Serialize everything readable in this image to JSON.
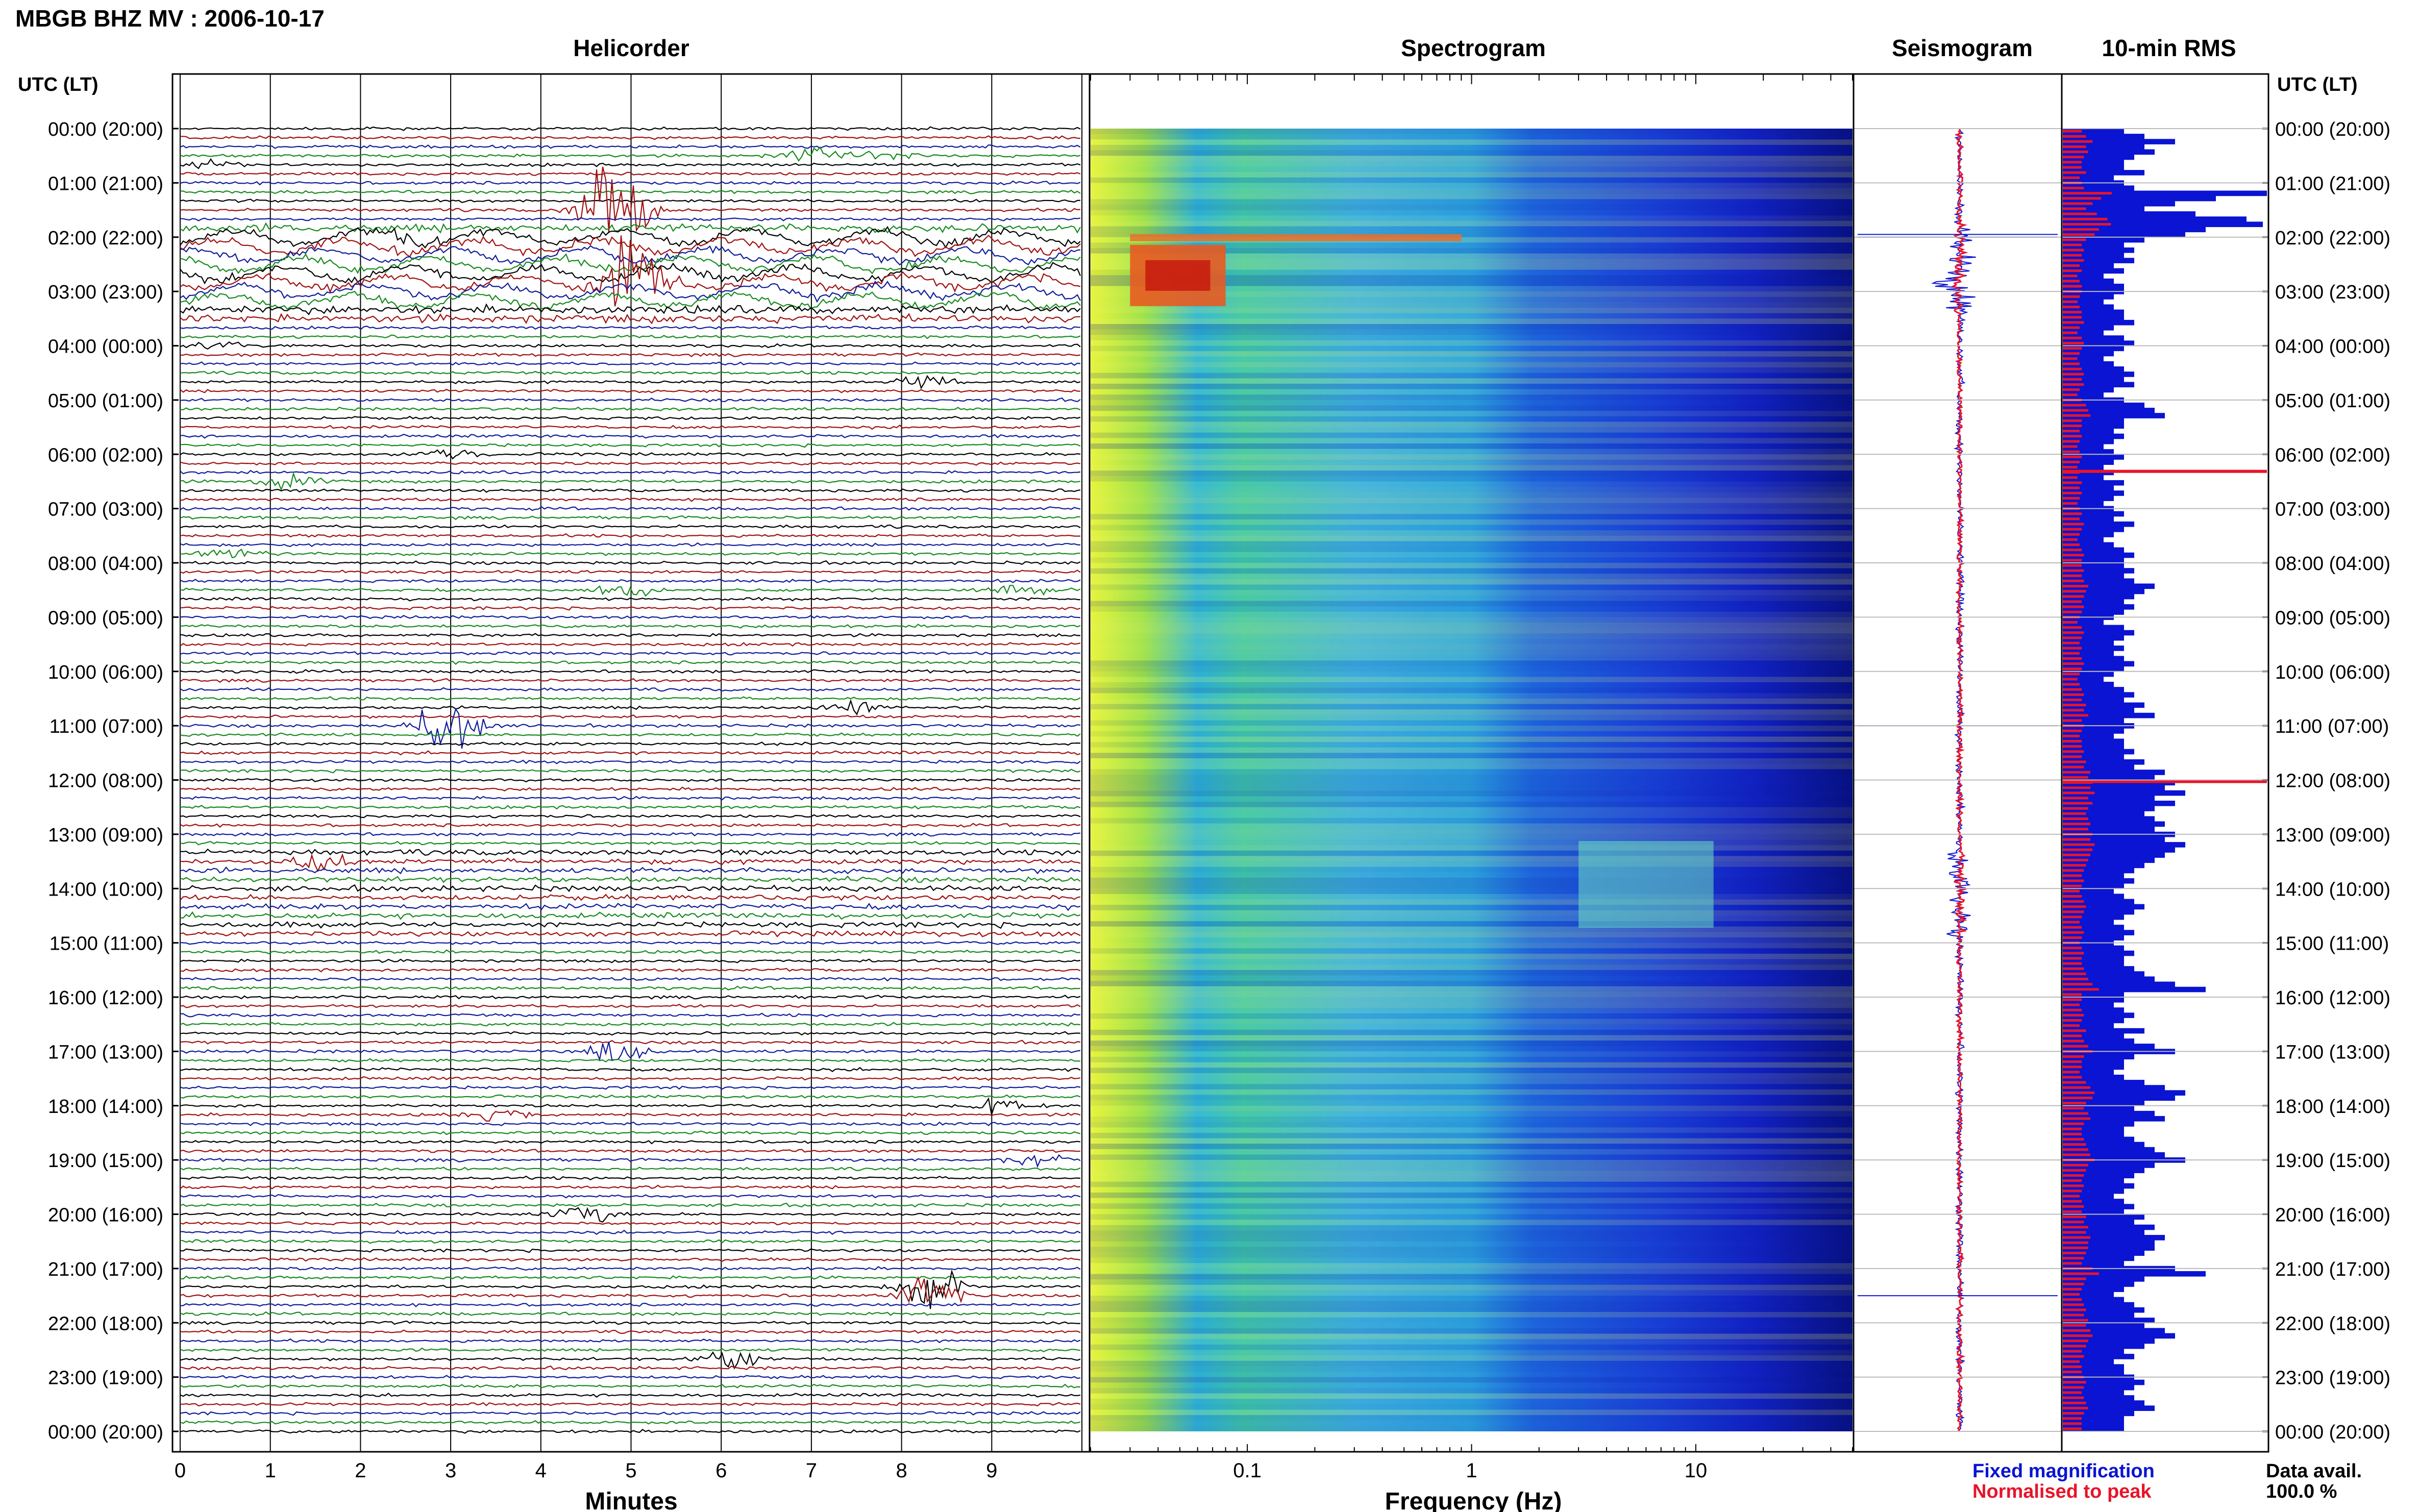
{
  "header": {
    "title": "MBGB BHZ MV : 2006-10-17",
    "utc_label": "UTC (LT)"
  },
  "panels": {
    "helicorder": "Helicorder",
    "spectrogram": "Spectrogram",
    "seismogram": "Seismogram",
    "rms": "10-min RMS"
  },
  "time_labels": [
    "00:00 (20:00)",
    "01:00 (21:00)",
    "02:00 (22:00)",
    "03:00 (23:00)",
    "04:00 (00:00)",
    "05:00 (01:00)",
    "06:00 (02:00)",
    "07:00 (03:00)",
    "08:00 (04:00)",
    "09:00 (05:00)",
    "10:00 (06:00)",
    "11:00 (07:00)",
    "12:00 (08:00)",
    "13:00 (09:00)",
    "14:00 (10:00)",
    "15:00 (11:00)",
    "16:00 (12:00)",
    "17:00 (13:00)",
    "18:00 (14:00)",
    "19:00 (15:00)",
    "20:00 (16:00)",
    "21:00 (17:00)",
    "22:00 (18:00)",
    "23:00 (19:00)",
    "00:00 (20:00)"
  ],
  "legend": {
    "fixed": "Fixed magnification",
    "normalised": "Normalised to peak",
    "data_avail_label": "Data avail.",
    "data_avail_value": "100.0 %"
  },
  "colors": {
    "blue": "#0a14d2",
    "red": "#e8142a",
    "trace_black": "#000000",
    "trace_red": "#a01010",
    "trace_blue": "#101c9a",
    "trace_green": "#178a1e"
  },
  "chart_data": [
    {
      "type": "line",
      "panel": "Helicorder",
      "xlabel": "Minutes",
      "x_ticks": [
        "0",
        "1",
        "2",
        "3",
        "4",
        "5",
        "6",
        "7",
        "8",
        "9"
      ],
      "xlim": [
        0,
        10
      ],
      "rows_per_hour": 6,
      "events": [
        {
          "hour": 0.5,
          "minute": 7.0,
          "amp": 0.5
        },
        {
          "hour": 0.5,
          "minute": 7.8,
          "amp": 0.4
        },
        {
          "hour": 0.67,
          "minute": 0.4,
          "amp": 0.4
        },
        {
          "hour": 1.5,
          "minute": 4.8,
          "amp": 4.0
        },
        {
          "hour": 2.0,
          "minute": 2.5,
          "amp": 0.5
        },
        {
          "hour": 2.8,
          "minute": 5.0,
          "amp": 3.0
        },
        {
          "hour": 4.0,
          "minute": 0.5,
          "amp": 0.5
        },
        {
          "hour": 4.67,
          "minute": 8.3,
          "amp": 0.5
        },
        {
          "hour": 6.0,
          "minute": 3.0,
          "amp": 0.5
        },
        {
          "hour": 6.5,
          "minute": 1.2,
          "amp": 0.6
        },
        {
          "hour": 7.8,
          "minute": 0.6,
          "amp": 0.5
        },
        {
          "hour": 8.5,
          "minute": 4.9,
          "amp": 0.7
        },
        {
          "hour": 8.5,
          "minute": 9.3,
          "amp": 0.5
        },
        {
          "hour": 11.0,
          "minute": 3.0,
          "amp": 2.0
        },
        {
          "hour": 10.67,
          "minute": 7.4,
          "amp": 0.6
        },
        {
          "hour": 13.5,
          "minute": 1.5,
          "amp": 0.8
        },
        {
          "hour": 17.0,
          "minute": 4.9,
          "amp": 0.8
        },
        {
          "hour": 18.0,
          "minute": 9.1,
          "amp": 0.6
        },
        {
          "hour": 18.17,
          "minute": 3.5,
          "amp": 0.5
        },
        {
          "hour": 19.0,
          "minute": 9.5,
          "amp": 0.6
        },
        {
          "hour": 20.0,
          "minute": 4.5,
          "amp": 0.7
        },
        {
          "hour": 21.4,
          "minute": 8.3,
          "amp": 1.5
        },
        {
          "hour": 22.67,
          "minute": 6.1,
          "amp": 0.7
        }
      ]
    },
    {
      "type": "heatmap",
      "panel": "Spectrogram",
      "xlabel": "Frequency (Hz)",
      "x_scale": "log",
      "xlim": [
        0.02,
        50
      ],
      "x_ticks": [
        "0.1",
        "1",
        "10"
      ],
      "features": [
        {
          "hour": 2.0,
          "fmin": 0.03,
          "fmax": 0.9,
          "level": "high"
        },
        {
          "hour": 2.8,
          "fmin": 0.03,
          "fmax": 0.08,
          "level": "very high"
        },
        {
          "hour": 13.5,
          "fmin": 3,
          "fmax": 12,
          "level": "elevated"
        }
      ]
    },
    {
      "type": "line",
      "panel": "Seismogram",
      "series": [
        {
          "name": "Fixed magnification",
          "color": "#0a14d2"
        },
        {
          "name": "Normalised to peak",
          "color": "#e8142a"
        }
      ]
    },
    {
      "type": "bar",
      "panel": "10-min RMS",
      "interval_minutes": 10,
      "values": [
        0.3,
        0.4,
        0.55,
        0.4,
        0.45,
        0.35,
        0.3,
        0.3,
        0.4,
        0.25,
        0.3,
        0.35,
        1.0,
        0.75,
        0.55,
        0.4,
        0.65,
        0.9,
        0.98,
        0.7,
        0.6,
        0.4,
        0.3,
        0.35,
        0.3,
        0.35,
        0.25,
        0.3,
        0.2,
        0.25,
        0.3,
        0.3,
        0.25,
        0.2,
        0.25,
        0.3,
        0.3,
        0.35,
        0.25,
        0.2,
        0.3,
        0.35,
        0.3,
        0.25,
        0.2,
        0.25,
        0.3,
        0.35,
        0.3,
        0.35,
        0.25,
        0.2,
        0.3,
        0.4,
        0.45,
        0.5,
        0.3,
        0.3,
        0.25,
        0.3,
        0.25,
        0.2,
        0.25,
        0.3,
        0.25,
        0.2,
        0.25,
        0.2,
        0.3,
        0.25,
        0.3,
        0.25,
        0.2,
        0.25,
        0.3,
        0.25,
        0.35,
        0.3,
        0.25,
        0.2,
        0.25,
        0.3,
        0.35,
        0.3,
        0.3,
        0.35,
        0.3,
        0.35,
        0.45,
        0.4,
        0.35,
        0.3,
        0.35,
        0.3,
        0.25,
        0.2,
        0.3,
        0.35,
        0.3,
        0.25,
        0.3,
        0.25,
        0.3,
        0.35,
        0.3,
        0.25,
        0.2,
        0.25,
        0.3,
        0.35,
        0.3,
        0.4,
        0.35,
        0.45,
        0.3,
        0.35,
        0.3,
        0.25,
        0.3,
        0.3,
        0.35,
        0.3,
        0.4,
        0.35,
        0.5,
        0.45,
        0.55,
        0.5,
        0.6,
        0.45,
        0.55,
        0.45,
        0.4,
        0.45,
        0.5,
        0.45,
        0.55,
        0.5,
        0.6,
        0.55,
        0.5,
        0.45,
        0.4,
        0.35,
        0.3,
        0.35,
        0.3,
        0.25,
        0.3,
        0.35,
        0.4,
        0.35,
        0.3,
        0.25,
        0.3,
        0.35,
        0.3,
        0.25,
        0.3,
        0.35,
        0.3,
        0.3,
        0.35,
        0.4,
        0.45,
        0.55,
        0.7,
        0.3,
        0.3,
        0.25,
        0.3,
        0.35,
        0.3,
        0.25,
        0.4,
        0.3,
        0.35,
        0.45,
        0.55,
        0.35,
        0.3,
        0.3,
        0.25,
        0.3,
        0.4,
        0.5,
        0.6,
        0.55,
        0.4,
        0.35,
        0.45,
        0.5,
        0.35,
        0.3,
        0.3,
        0.35,
        0.4,
        0.45,
        0.5,
        0.6,
        0.45,
        0.4,
        0.35,
        0.3,
        0.35,
        0.3,
        0.25,
        0.3,
        0.35,
        0.3,
        0.4,
        0.35,
        0.45,
        0.4,
        0.5,
        0.45,
        0.45,
        0.4,
        0.35,
        0.3,
        0.55,
        0.7,
        0.4,
        0.35,
        0.3,
        0.25,
        0.3,
        0.35,
        0.4,
        0.35,
        0.45,
        0.4,
        0.5,
        0.55,
        0.45,
        0.4,
        0.3,
        0.35,
        0.25,
        0.3,
        0.3,
        0.35,
        0.4,
        0.35,
        0.3,
        0.35,
        0.4,
        0.45,
        0.35,
        0.3,
        0.3,
        0.3
      ],
      "spikes": [
        {
          "index": 66,
          "value": 1.0
        },
        {
          "index": 126,
          "value": 1.0
        }
      ]
    }
  ]
}
